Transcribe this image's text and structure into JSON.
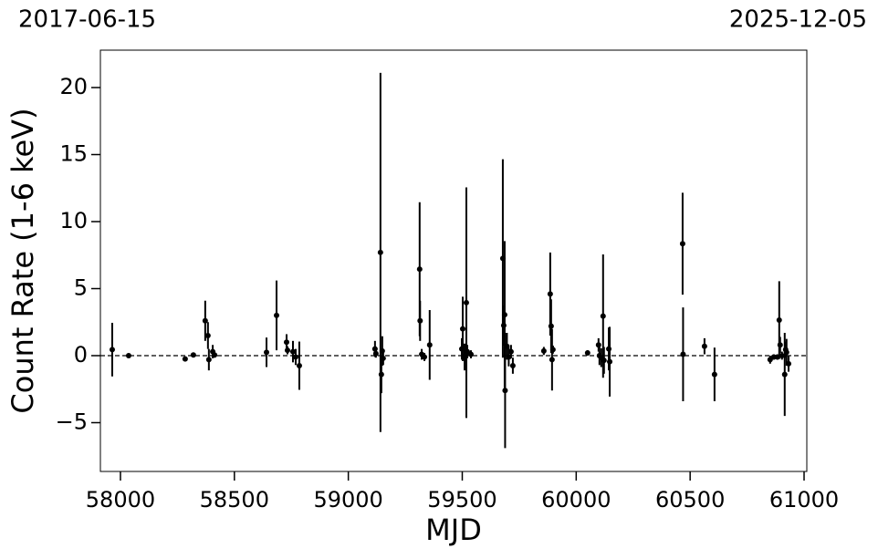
{
  "chart_data": {
    "type": "scatter",
    "top_left_label": "2017-06-15",
    "top_right_label": "2025-12-05",
    "x_label": "MJD",
    "y_label": "Count Rate (1-6 keV)",
    "xlim": [
      57912,
      61012
    ],
    "ylim": [
      -8.64,
      22.79
    ],
    "xticks": [
      58000,
      58500,
      59000,
      59500,
      60000,
      60500,
      61000
    ],
    "yticks": [
      {
        "value": -5,
        "label": "−5"
      },
      0,
      5,
      10,
      15,
      20
    ],
    "hline": 0,
    "series": [
      {
        "color": "#000000",
        "x": [
          57964,
          58036,
          58284,
          58320,
          58372,
          58384,
          58388,
          58405,
          58413,
          58641,
          58685,
          58729,
          58733,
          58757,
          58769,
          58785,
          59117,
          59121,
          59141,
          59145,
          59149,
          59153,
          59313,
          59315,
          59322,
          59334,
          59357,
          59498,
          59502,
          59510,
          59518,
          59522,
          59538,
          59678,
          59682,
          59686,
          59688,
          59696,
          59704,
          59714,
          59722,
          59858,
          59886,
          59890,
          59894,
          59898,
          60050,
          60098,
          60102,
          60110,
          60118,
          60122,
          60143,
          60147,
          60467,
          60469,
          60563,
          60607,
          60851,
          60867,
          60883,
          60891,
          60895,
          60903,
          60915,
          60919,
          60923,
          60932
        ],
        "values": [
          0.45,
          0,
          -0.25,
          0.05,
          2.6,
          1.5,
          -0.3,
          0.3,
          0.05,
          0.25,
          3.0,
          1.0,
          0.4,
          0.3,
          -0.1,
          -0.75,
          0.5,
          0.15,
          7.7,
          -1.4,
          0.35,
          -0.2,
          6.45,
          2.6,
          0.1,
          -0.1,
          0.8,
          0.5,
          2.0,
          -0.1,
          3.95,
          0.3,
          0.1,
          7.25,
          2.25,
          3.05,
          -2.6,
          0.7,
          -0.1,
          0.3,
          -0.75,
          0.35,
          4.6,
          2.2,
          -0.3,
          0.45,
          0.2,
          0.8,
          0,
          -0.15,
          2.95,
          -0.35,
          0.5,
          -0.45,
          8.35,
          0.1,
          0.7,
          -1.4,
          -0.3,
          -0.1,
          -0.1,
          2.65,
          0.8,
          0,
          -1.4,
          0.45,
          0.25,
          -0.6
        ],
        "errors": [
          2.0,
          0.1,
          0.1,
          0.1,
          1.5,
          1.0,
          0.8,
          0.5,
          0.2,
          1.1,
          2.6,
          0.6,
          0.3,
          0.8,
          0.6,
          1.8,
          0.6,
          0.3,
          13.4,
          1.4,
          1.1,
          0.5,
          5.0,
          1.5,
          0.4,
          0.3,
          2.6,
          0.8,
          2.4,
          1.0,
          8.6,
          0.5,
          0.3,
          7.4,
          1.5,
          5.5,
          4.3,
          1.0,
          0.7,
          0.5,
          0.6,
          0.3,
          3.1,
          2.0,
          2.3,
          0.3,
          0.2,
          0.5,
          0.7,
          0.7,
          4.6,
          1.0,
          1.6,
          2.6,
          3.8,
          3.5,
          0.6,
          2.0,
          0.3,
          0.2,
          0.2,
          2.9,
          0.6,
          0.3,
          3.1,
          0.6,
          1.0,
          0.6
        ]
      }
    ]
  }
}
